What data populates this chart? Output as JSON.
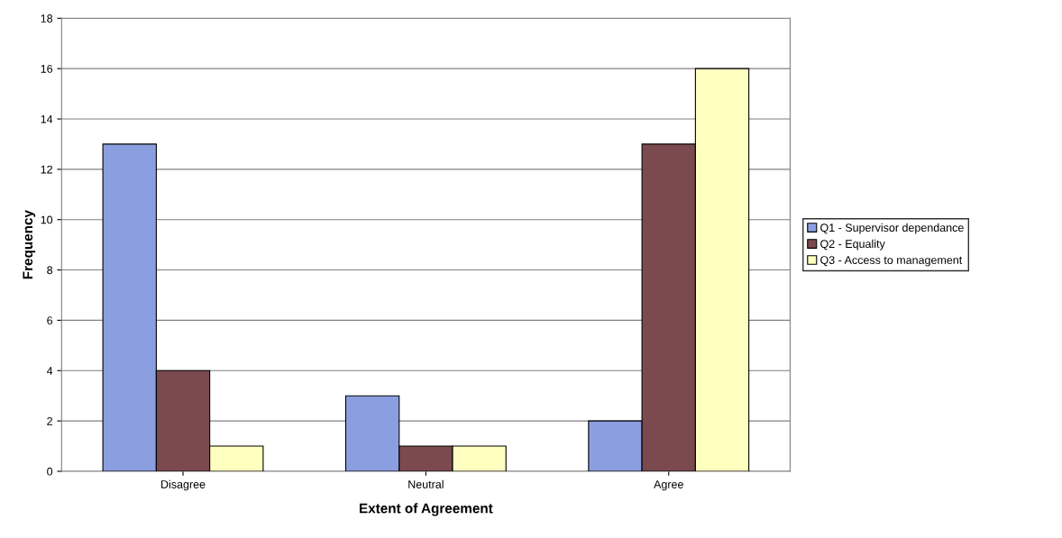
{
  "chart_data": {
    "type": "bar",
    "xlabel": "Extent of Agreement",
    "ylabel": "Frequency",
    "categories": [
      "Disagree",
      "Neutral",
      "Agree"
    ],
    "series": [
      {
        "name": "Q1 - Supervisor dependance",
        "color": "#8b9fe0",
        "values": [
          13,
          3,
          2
        ]
      },
      {
        "name": "Q2 - Equality",
        "color": "#7b4a4f",
        "values": [
          4,
          1,
          13
        ]
      },
      {
        "name": "Q3 - Access to management",
        "color": "#ffffc0",
        "values": [
          1,
          1,
          16
        ]
      }
    ],
    "ylim": [
      0,
      18
    ],
    "yticks": [
      0,
      2,
      4,
      6,
      8,
      10,
      12,
      14,
      16,
      18
    ],
    "grid": "y",
    "legend": "right"
  }
}
